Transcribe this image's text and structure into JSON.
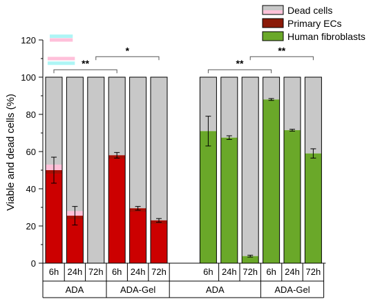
{
  "colors": {
    "dead": "#c8c8c8",
    "dead_light": "#ffc0d8",
    "primary_ec": "#cc0000",
    "primary_ec_dark": "#8b1a08",
    "fibroblast": "#6aa829",
    "cyan_marker": "#aef5f5",
    "pink_marker": "#ffc0da"
  },
  "chart_data": {
    "type": "bar",
    "stacked": true,
    "ylabel": "Viable and dead cells (%)",
    "ylim": [
      0,
      120
    ],
    "yticks": [
      "0",
      "20",
      "40",
      "60",
      "80",
      "100",
      "120"
    ],
    "legend": {
      "placement": "top-right",
      "entries": [
        {
          "label": "Dead cells",
          "key": "dead"
        },
        {
          "label": "Primary ECs",
          "key": "primary_ec_dark"
        },
        {
          "label": "Human fibroblasts",
          "key": "fibroblast"
        }
      ]
    },
    "categories": [
      "6h",
      "24h",
      "72h",
      "6h",
      "24h",
      "72h",
      "6h",
      "24h",
      "72h",
      "6h",
      "24h",
      "72h"
    ],
    "groups": [
      {
        "label": "ADA",
        "span": [
          0,
          2
        ]
      },
      {
        "label": "ADA-Gel",
        "span": [
          3,
          5
        ]
      },
      {
        "label": "ADA",
        "span": [
          6,
          8
        ]
      },
      {
        "label": "ADA-Gel",
        "span": [
          9,
          11
        ]
      }
    ],
    "bars": [
      {
        "cell": "primary_ec",
        "viable": 50,
        "error": 7,
        "dead_light": 53
      },
      {
        "cell": "primary_ec",
        "viable": 25.5,
        "error": 5,
        "dead_light": 28
      },
      {
        "cell": "primary_ec",
        "viable": 0,
        "error": 0,
        "dead_light": 0
      },
      {
        "cell": "primary_ec",
        "viable": 58,
        "error": 1.5,
        "dead_light": 0
      },
      {
        "cell": "primary_ec",
        "viable": 29.5,
        "error": 1,
        "dead_light": 0
      },
      {
        "cell": "primary_ec",
        "viable": 23,
        "error": 1,
        "dead_light": 0
      },
      {
        "cell": "fibroblast",
        "viable": 71,
        "error": 8,
        "dead_light": 0
      },
      {
        "cell": "fibroblast",
        "viable": 67.5,
        "error": 1,
        "dead_light": 0
      },
      {
        "cell": "fibroblast",
        "viable": 3.8,
        "error": 0.5,
        "dead_light": 0
      },
      {
        "cell": "fibroblast",
        "viable": 88,
        "error": 0.5,
        "dead_light": 0
      },
      {
        "cell": "fibroblast",
        "viable": 71.5,
        "error": 0.5,
        "dead_light": 0
      },
      {
        "cell": "fibroblast",
        "viable": 59,
        "error": 2.5,
        "dead_light": 0
      }
    ],
    "significance": [
      {
        "from": 0,
        "to": 3,
        "y": 104,
        "label": "**"
      },
      {
        "from": 2,
        "to": 5,
        "y": 111,
        "label": "*"
      },
      {
        "from": 6,
        "to": 9,
        "y": 104,
        "label": "**"
      },
      {
        "from": 8,
        "to": 11,
        "y": 111,
        "label": "**"
      }
    ],
    "top_markers": [
      {
        "from": 0,
        "to": 0.7,
        "y": 122,
        "key": "cyan_marker"
      },
      {
        "from": 0,
        "to": 0.7,
        "y": 120,
        "key": "pink_marker"
      },
      {
        "from": -0.1,
        "to": 0.8,
        "y": 110,
        "key": "pink_marker"
      },
      {
        "from": -0.1,
        "to": 0.8,
        "y": 107.5,
        "key": "cyan_marker"
      }
    ]
  }
}
